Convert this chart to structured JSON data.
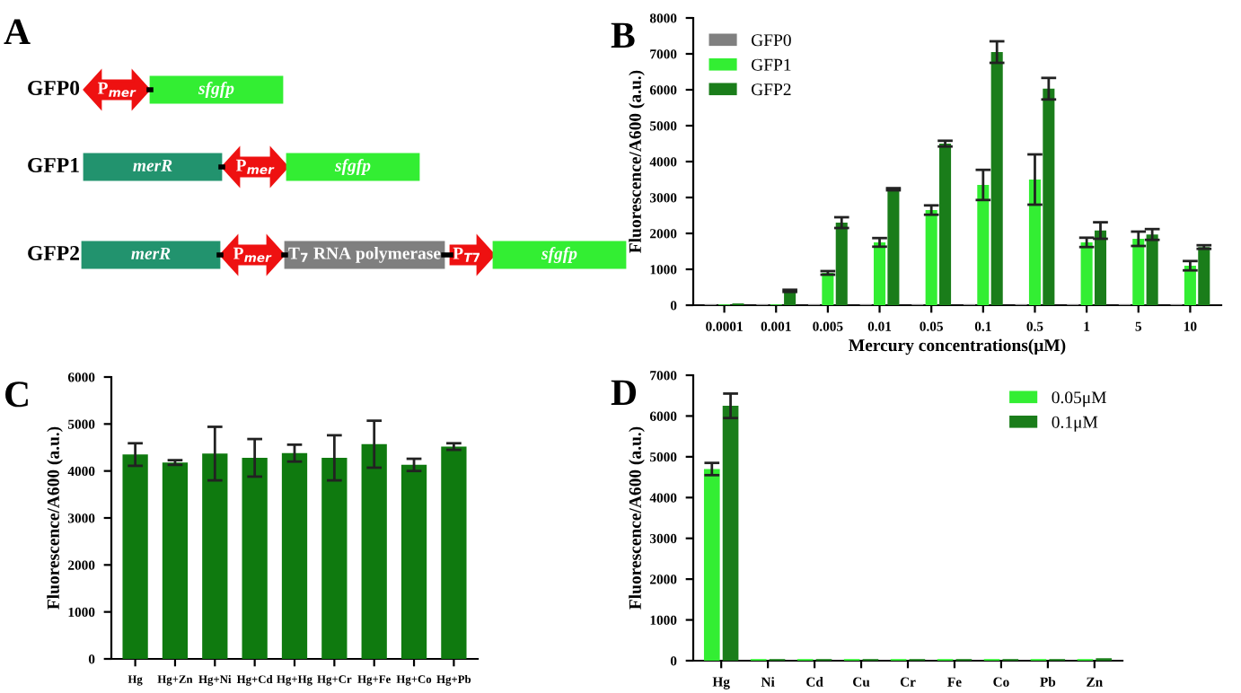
{
  "chart_data": [
    {
      "type": "other",
      "title": "A",
      "annotations": [
        "GFP0",
        "P$_{mer}$",
        "sfgfp",
        "GFP1",
        "merR",
        "P$_{mer}$",
        "sfgfp",
        "GFP2",
        "merR",
        "P$_{mer}$",
        "T$_{7}$ RNA polymerase",
        "P$_{T7}$",
        "sfgfp"
      ]
    },
    {
      "type": "bar",
      "title": "B",
      "xlabel": "Mercury concentrations(μM)",
      "ylabel": "Fluorescence/A600 (a.u.)",
      "categories": [
        "0.0001",
        "0.001",
        "0.005",
        "0.01",
        "0.05",
        "0.1",
        "0.5",
        "1",
        "5",
        "10"
      ],
      "ylim": [
        0,
        8000
      ],
      "yticks": [
        0,
        1000,
        2000,
        3000,
        4000,
        5000,
        6000,
        7000,
        8000
      ],
      "legend": "top left",
      "series": [
        {
          "name": "GFP0",
          "color": "#808080",
          "values": [
            30,
            30,
            30,
            30,
            30,
            30,
            30,
            30,
            30,
            30
          ]
        },
        {
          "name": "GFP1",
          "color": "#33ee33",
          "values": [
            20,
            20,
            900,
            1750,
            2650,
            3350,
            3500,
            1750,
            1850,
            1100
          ],
          "errors": [
            null,
            null,
            50,
            120,
            130,
            420,
            700,
            130,
            200,
            130
          ]
        },
        {
          "name": "GFP2",
          "color": "#1a7d1a",
          "values": [
            50,
            400,
            2300,
            3230,
            4500,
            7050,
            6030,
            2080,
            1970,
            1620
          ],
          "errors": [
            null,
            30,
            150,
            30,
            80,
            300,
            300,
            230,
            150,
            50
          ]
        }
      ]
    },
    {
      "type": "bar",
      "title": "C",
      "ylabel": "Fluorescence/A600 (a.u.)",
      "categories": [
        "Hg",
        "Hg+Zn",
        "Hg+Ni",
        "Hg+Cd",
        "Hg+Hg",
        "Hg+Cr",
        "Hg+Fe",
        "Hg+Co",
        "Hg+Pb"
      ],
      "ylim": [
        0,
        6000
      ],
      "yticks": [
        0,
        1000,
        2000,
        3000,
        4000,
        5000,
        6000
      ],
      "color": "#0f7a0f",
      "values": [
        4350,
        4180,
        4370,
        4280,
        4380,
        4280,
        4570,
        4130,
        4520
      ],
      "errors": [
        240,
        50,
        570,
        400,
        180,
        480,
        500,
        130,
        70
      ]
    },
    {
      "type": "bar",
      "title": "D",
      "ylabel": "Fluorescence/A600 (a.u.)",
      "categories": [
        "Hg",
        "Ni",
        "Cd",
        "Cu",
        "Cr",
        "Fe",
        "Co",
        "Pb",
        "Zn"
      ],
      "ylim": [
        0,
        7000
      ],
      "yticks": [
        0,
        1000,
        2000,
        3000,
        4000,
        5000,
        6000,
        7000
      ],
      "legend": "top right",
      "series": [
        {
          "name": "0.05μM",
          "color": "#33ee33",
          "values": [
            4700,
            40,
            40,
            40,
            40,
            40,
            40,
            40,
            40
          ],
          "errors": [
            150,
            null,
            null,
            null,
            null,
            null,
            null,
            null,
            null
          ]
        },
        {
          "name": "0.1μM",
          "color": "#1a7d1a",
          "values": [
            6250,
            40,
            40,
            40,
            40,
            40,
            40,
            40,
            60
          ],
          "errors": [
            300,
            null,
            null,
            null,
            null,
            null,
            null,
            null,
            null
          ]
        }
      ]
    }
  ]
}
